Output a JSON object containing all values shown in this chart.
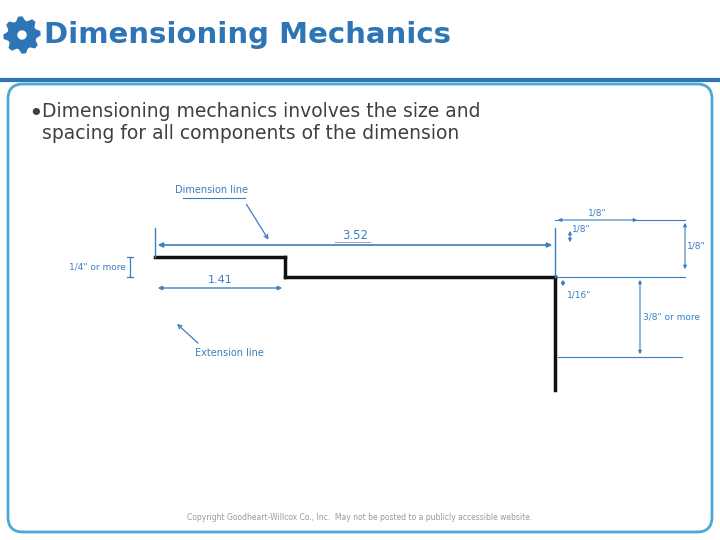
{
  "title": "Dimensioning Mechanics",
  "title_color": "#2E75B6",
  "bullet_text_line1": "Dimensioning mechanics involves the size and",
  "bullet_text_line2": "spacing for all components of the dimension",
  "bg_color": "#FFFFFF",
  "border_color": "#4AAAD4",
  "text_color": "#404040",
  "dim_color": "#3A7FC1",
  "object_color": "#111111",
  "copyright": "Copyright Goodheart-Willcox Co., Inc.  May not be posted to a publicly accessible website.",
  "gear_color": "#2E75B6",
  "header_bar_color": "#2E75B6"
}
